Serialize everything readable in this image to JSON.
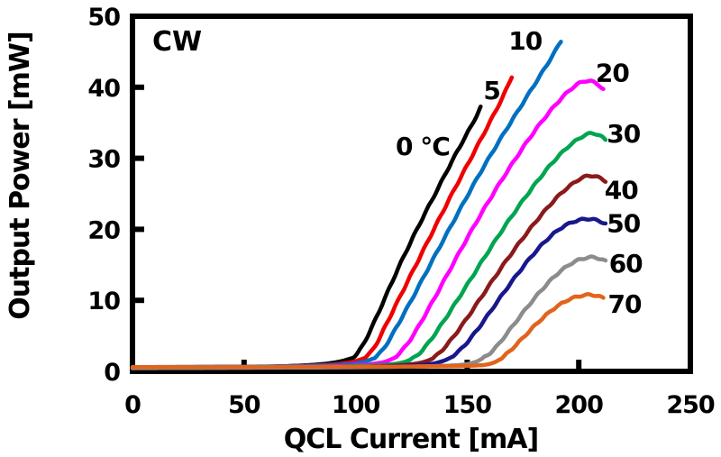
{
  "chart_data": {
    "type": "line",
    "title": "",
    "xlabel": "QCL Current [mA]",
    "ylabel": "Output Power [mW]",
    "annotation": "CW",
    "annotation_pos": [
      20,
      46.6
    ],
    "xlim": [
      0,
      250
    ],
    "ylim": [
      0,
      50
    ],
    "x_ticks": [
      0,
      50,
      100,
      150,
      200,
      250
    ],
    "y_ticks": [
      0,
      10,
      20,
      30,
      40,
      50
    ],
    "grid": false,
    "legend": "inline-labels",
    "axis_color": "#000000",
    "background_color": "#ffffff",
    "series": [
      {
        "name": "0 °C",
        "color": "#000000",
        "label_pos": [
          130,
          31.7
        ],
        "points": [
          [
            0,
            0.5
          ],
          [
            30,
            0.55
          ],
          [
            55,
            0.6
          ],
          [
            75,
            0.8
          ],
          [
            85,
            1.0
          ],
          [
            92,
            1.3
          ],
          [
            97,
            1.7
          ],
          [
            100,
            2.2
          ],
          [
            103,
            3.5
          ],
          [
            107,
            6.0
          ],
          [
            112,
            9.5
          ],
          [
            118,
            13.8
          ],
          [
            124,
            17.8
          ],
          [
            130,
            21.6
          ],
          [
            136,
            25.2
          ],
          [
            142,
            28.9
          ],
          [
            148,
            32.4
          ],
          [
            153,
            35.2
          ],
          [
            156,
            37.2
          ]
        ]
      },
      {
        "name": "5",
        "color": "#f00000",
        "label_pos": [
          161,
          39.6
        ],
        "points": [
          [
            0,
            0.55
          ],
          [
            30,
            0.6
          ],
          [
            60,
            0.65
          ],
          [
            80,
            0.8
          ],
          [
            92,
            1.0
          ],
          [
            100,
            1.4
          ],
          [
            105,
            2.0
          ],
          [
            109,
            3.6
          ],
          [
            114,
            6.8
          ],
          [
            120,
            10.6
          ],
          [
            128,
            15.6
          ],
          [
            136,
            20.6
          ],
          [
            144,
            25.5
          ],
          [
            152,
            30.2
          ],
          [
            160,
            35.0
          ],
          [
            166,
            38.6
          ],
          [
            170,
            41.5
          ]
        ]
      },
      {
        "name": "10",
        "color": "#0070c0",
        "label_pos": [
          176,
          46.6
        ],
        "points": [
          [
            0,
            0.6
          ],
          [
            35,
            0.65
          ],
          [
            70,
            0.7
          ],
          [
            90,
            0.85
          ],
          [
            100,
            1.1
          ],
          [
            106,
            1.5
          ],
          [
            110,
            2.2
          ],
          [
            114,
            3.8
          ],
          [
            119,
            6.6
          ],
          [
            126,
            10.6
          ],
          [
            134,
            15.4
          ],
          [
            144,
            21.2
          ],
          [
            154,
            27.0
          ],
          [
            164,
            32.3
          ],
          [
            174,
            37.3
          ],
          [
            182,
            41.3
          ],
          [
            188,
            44.3
          ],
          [
            192,
            46.5
          ]
        ]
      },
      {
        "name": "20",
        "color": "#ff00ff",
        "label_pos": [
          215,
          42.1
        ],
        "points": [
          [
            0,
            0.5
          ],
          [
            40,
            0.55
          ],
          [
            80,
            0.65
          ],
          [
            100,
            0.8
          ],
          [
            110,
            1.1
          ],
          [
            116,
            1.6
          ],
          [
            120,
            2.6
          ],
          [
            125,
            4.6
          ],
          [
            132,
            8.4
          ],
          [
            140,
            13.0
          ],
          [
            150,
            18.8
          ],
          [
            160,
            24.2
          ],
          [
            170,
            29.2
          ],
          [
            180,
            33.8
          ],
          [
            188,
            37.0
          ],
          [
            195,
            39.4
          ],
          [
            200,
            40.6
          ],
          [
            204,
            41.0
          ],
          [
            208,
            40.6
          ],
          [
            211,
            39.7
          ]
        ]
      },
      {
        "name": "30",
        "color": "#00a550",
        "label_pos": [
          220,
          33.5
        ],
        "points": [
          [
            0,
            0.5
          ],
          [
            40,
            0.55
          ],
          [
            80,
            0.6
          ],
          [
            105,
            0.75
          ],
          [
            118,
            1.0
          ],
          [
            124,
            1.5
          ],
          [
            128,
            2.3
          ],
          [
            133,
            4.1
          ],
          [
            140,
            7.3
          ],
          [
            148,
            11.2
          ],
          [
            158,
            16.2
          ],
          [
            168,
            21.0
          ],
          [
            178,
            25.4
          ],
          [
            188,
            29.4
          ],
          [
            196,
            31.9
          ],
          [
            202,
            33.2
          ],
          [
            206,
            33.6
          ],
          [
            209,
            33.3
          ],
          [
            212,
            32.6
          ]
        ]
      },
      {
        "name": "40",
        "color": "#8b1a1a",
        "label_pos": [
          219,
          25.6
        ],
        "points": [
          [
            0,
            0.45
          ],
          [
            40,
            0.5
          ],
          [
            80,
            0.55
          ],
          [
            110,
            0.7
          ],
          [
            125,
            0.95
          ],
          [
            132,
            1.4
          ],
          [
            136,
            2.1
          ],
          [
            141,
            3.7
          ],
          [
            148,
            6.6
          ],
          [
            156,
            10.3
          ],
          [
            165,
            14.5
          ],
          [
            174,
            18.4
          ],
          [
            183,
            22.0
          ],
          [
            191,
            24.8
          ],
          [
            197,
            26.4
          ],
          [
            202,
            27.4
          ],
          [
            206,
            27.6
          ],
          [
            209,
            27.3
          ],
          [
            212,
            26.8
          ]
        ]
      },
      {
        "name": "50",
        "color": "#18188c",
        "label_pos": [
          220,
          20.9
        ],
        "points": [
          [
            0,
            0.5
          ],
          [
            40,
            0.55
          ],
          [
            85,
            0.6
          ],
          [
            118,
            0.7
          ],
          [
            133,
            0.95
          ],
          [
            139,
            1.4
          ],
          [
            143,
            2.0
          ],
          [
            148,
            3.3
          ],
          [
            155,
            6.0
          ],
          [
            163,
            9.6
          ],
          [
            171,
            13.1
          ],
          [
            180,
            16.7
          ],
          [
            188,
            19.3
          ],
          [
            195,
            20.8
          ],
          [
            201,
            21.4
          ],
          [
            205,
            21.5
          ],
          [
            209,
            21.2
          ],
          [
            212,
            20.8
          ]
        ]
      },
      {
        "name": "60",
        "color": "#8c8c8c",
        "label_pos": [
          221,
          15.2
        ],
        "points": [
          [
            0,
            0.45
          ],
          [
            40,
            0.5
          ],
          [
            90,
            0.55
          ],
          [
            125,
            0.65
          ],
          [
            147,
            0.85
          ],
          [
            153,
            1.2
          ],
          [
            157,
            1.8
          ],
          [
            162,
            3.0
          ],
          [
            168,
            5.4
          ],
          [
            175,
            8.3
          ],
          [
            183,
            11.4
          ],
          [
            191,
            14.0
          ],
          [
            198,
            15.5
          ],
          [
            203,
            16.0
          ],
          [
            207,
            16.1
          ],
          [
            210,
            15.8
          ],
          [
            212,
            15.5
          ]
        ]
      },
      {
        "name": "70",
        "color": "#e2641c",
        "label_pos": [
          220.5,
          9.5
        ],
        "points": [
          [
            0,
            0.6
          ],
          [
            50,
            0.62
          ],
          [
            100,
            0.65
          ],
          [
            135,
            0.7
          ],
          [
            155,
            0.8
          ],
          [
            160,
            1.0
          ],
          [
            164,
            1.5
          ],
          [
            168,
            2.5
          ],
          [
            174,
            4.4
          ],
          [
            181,
            6.7
          ],
          [
            188,
            8.7
          ],
          [
            195,
            10.1
          ],
          [
            200,
            10.6
          ],
          [
            204,
            10.8
          ],
          [
            208,
            10.7
          ],
          [
            211,
            10.3
          ]
        ]
      }
    ]
  }
}
